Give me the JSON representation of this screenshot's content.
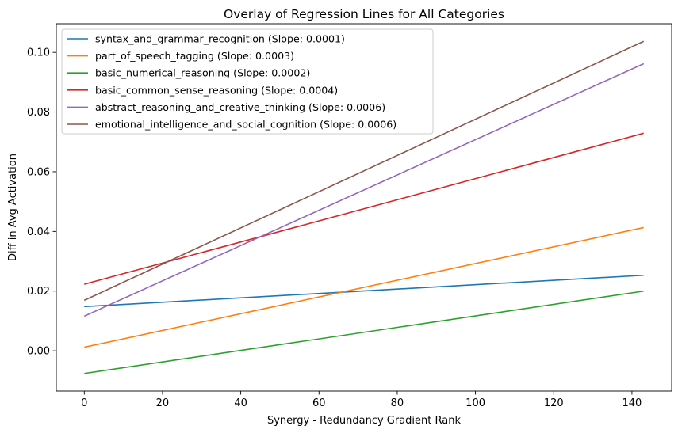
{
  "chart_data": {
    "type": "line",
    "title": "Overlay of Regression Lines for All Categories",
    "xlabel": "Synergy - Redundancy Gradient Rank",
    "ylabel": "Diff in Avg Activation",
    "xlim": [
      -7.15,
      150.15
    ],
    "ylim": [
      -0.0135,
      0.1096
    ],
    "xticks": [
      0,
      20,
      40,
      60,
      80,
      100,
      120,
      140
    ],
    "yticks": [
      0.0,
      0.02,
      0.04,
      0.06,
      0.08,
      0.1
    ],
    "ytick_labels": [
      "0.00",
      "0.02",
      "0.04",
      "0.06",
      "0.08",
      "0.10"
    ],
    "grid": false,
    "legend_position": "upper-left",
    "x": [
      0,
      143
    ],
    "series": [
      {
        "name": "syntax_and_grammar_recognition (Slope: 0.0001)",
        "color": "#1f77b4",
        "values": [
          0.0148,
          0.0253
        ]
      },
      {
        "name": "part_of_speech_tagging (Slope: 0.0003)",
        "color": "#ff7f0e",
        "values": [
          0.0012,
          0.0413
        ]
      },
      {
        "name": "basic_numerical_reasoning (Slope: 0.0002)",
        "color": "#2ca02c",
        "values": [
          -0.0076,
          0.02
        ]
      },
      {
        "name": "basic_common_sense_reasoning (Slope: 0.0004)",
        "color": "#d62728",
        "values": [
          0.0223,
          0.0729
        ]
      },
      {
        "name": "abstract_reasoning_and_creative_thinking (Slope: 0.0006)",
        "color": "#9467bd",
        "values": [
          0.0116,
          0.0962
        ]
      },
      {
        "name": "emotional_intelligence_and_social_cognition (Slope: 0.0006)",
        "color": "#8c564b",
        "values": [
          0.0169,
          0.1037
        ]
      }
    ]
  }
}
